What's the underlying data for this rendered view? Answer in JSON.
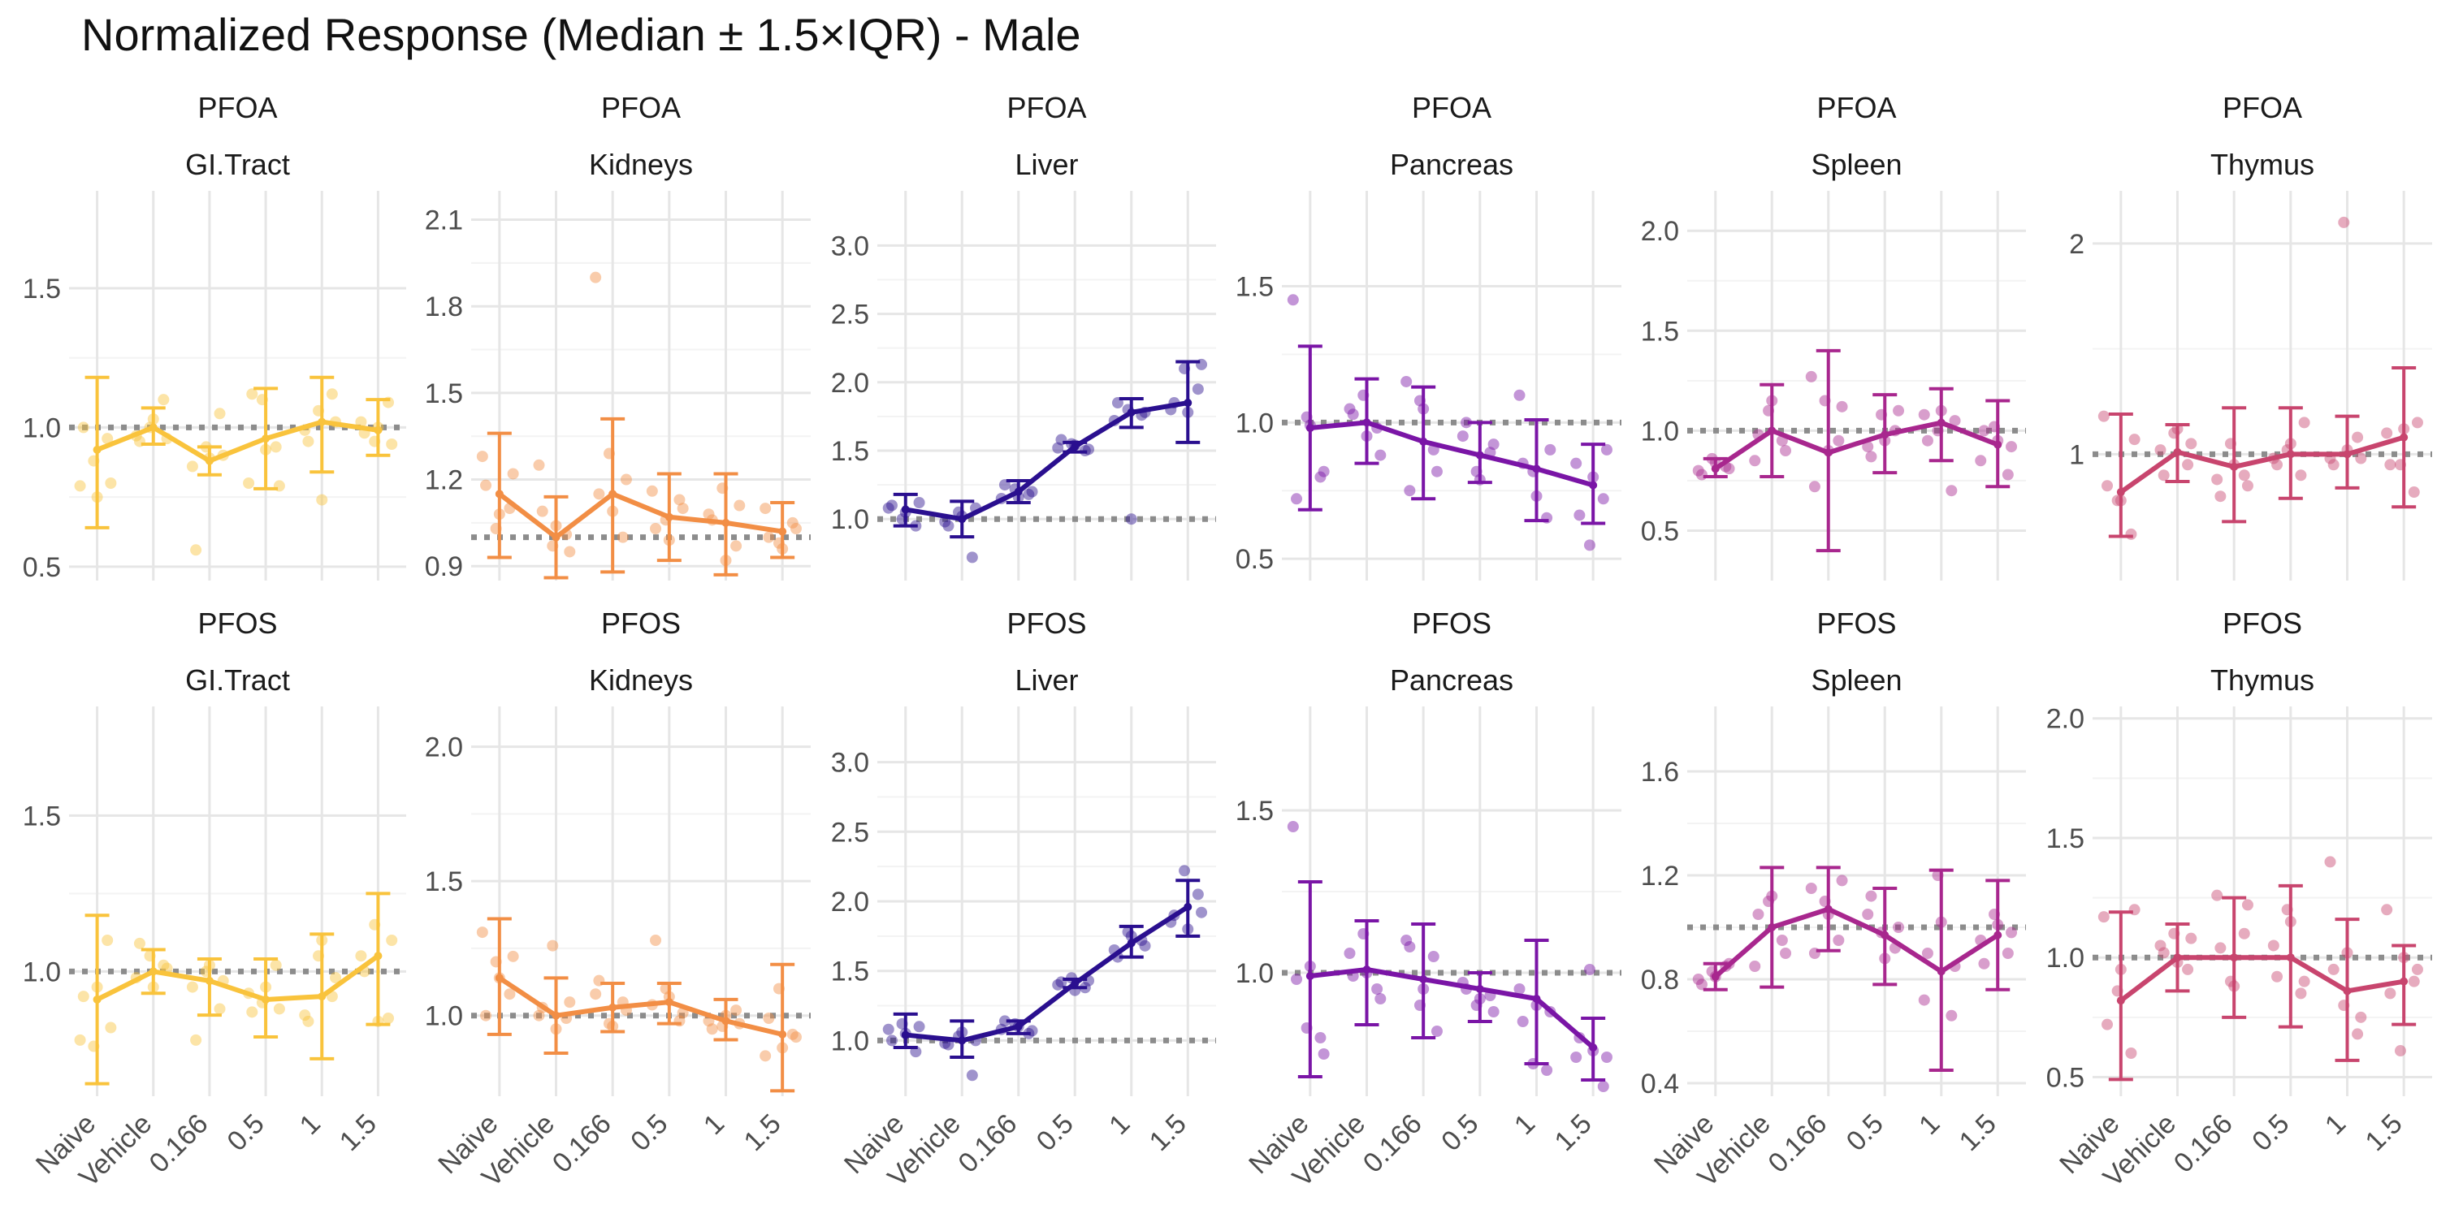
{
  "title": "Normalized Response (Median ± 1.5×IQR) - Male",
  "chart_data": {
    "type": "line",
    "x_categories": [
      "Naive",
      "Vehicle",
      "0.166",
      "0.5",
      "1",
      "1.5"
    ],
    "reference_line_y": 1.0,
    "row_strip_labels": [
      "PFOA",
      "PFOS"
    ],
    "panels": [
      {
        "compound": "PFOA",
        "organ": "GI.Tract",
        "color": "#F9C33C",
        "ylim": [
          0.45,
          1.85
        ],
        "ticks": [
          {
            "v": 0.5,
            "label": "0.5"
          },
          {
            "v": 1.0,
            "label": "1.0"
          },
          {
            "v": 1.5,
            "label": "1.5"
          }
        ],
        "median": [
          0.92,
          1.0,
          0.88,
          0.96,
          1.02,
          0.99
        ],
        "lower": [
          0.64,
          0.94,
          0.83,
          0.78,
          0.84,
          0.9
        ],
        "upper": [
          1.18,
          1.07,
          0.93,
          1.14,
          1.18,
          1.1
        ],
        "points": [
          [
            0.79,
            0.88,
            0.96,
            1.0,
            0.75,
            0.8
          ],
          [
            0.97,
            1.0,
            1.1,
            0.95,
            1.03,
            0.96
          ],
          [
            0.86,
            0.93,
            1.05,
            0.56,
            0.89,
            0.9
          ],
          [
            0.8,
            1.1,
            0.93,
            1.12,
            0.92,
            0.79
          ],
          [
            0.99,
            1.06,
            1.12,
            0.95,
            0.74,
            1.02
          ],
          [
            1.02,
            0.95,
            1.09,
            0.98,
            1.0,
            0.94
          ]
        ]
      },
      {
        "compound": "PFOA",
        "organ": "Kidneys",
        "color": "#F28E45",
        "ylim": [
          0.85,
          2.2
        ],
        "ticks": [
          {
            "v": 0.9,
            "label": "0.9"
          },
          {
            "v": 1.2,
            "label": "1.2"
          },
          {
            "v": 1.5,
            "label": "1.5"
          },
          {
            "v": 1.8,
            "label": "1.8"
          },
          {
            "v": 2.1,
            "label": "2.1"
          }
        ],
        "median": [
          1.15,
          1.0,
          1.15,
          1.07,
          1.05,
          1.02
        ],
        "lower": [
          0.93,
          0.86,
          0.88,
          0.92,
          0.87,
          0.93
        ],
        "upper": [
          1.36,
          1.14,
          1.41,
          1.22,
          1.22,
          1.12
        ],
        "points": [
          [
            1.28,
            1.03,
            1.1,
            1.18,
            1.08,
            1.22
          ],
          [
            1.25,
            0.97,
            1.01,
            1.09,
            1.04,
            0.95
          ],
          [
            1.9,
            1.29,
            1.0,
            1.15,
            1.09,
            1.2
          ],
          [
            1.16,
            1.06,
            1.13,
            1.03,
            0.99,
            1.1
          ],
          [
            1.08,
            1.17,
            0.97,
            1.06,
            0.92,
            1.11
          ],
          [
            1.1,
            0.98,
            1.05,
            1.0,
            0.96,
            1.03
          ]
        ]
      },
      {
        "compound": "PFOA",
        "organ": "Liver",
        "color": "#2A0F8F",
        "ylim": [
          0.55,
          3.4
        ],
        "ticks": [
          {
            "v": 1.0,
            "label": "1.0"
          },
          {
            "v": 1.5,
            "label": "1.5"
          },
          {
            "v": 2.0,
            "label": "2.0"
          },
          {
            "v": 2.5,
            "label": "2.5"
          },
          {
            "v": 3.0,
            "label": "3.0"
          }
        ],
        "median": [
          1.07,
          1.0,
          1.2,
          1.53,
          1.78,
          1.85
        ],
        "lower": [
          0.95,
          0.87,
          1.12,
          1.49,
          1.67,
          1.56
        ],
        "upper": [
          1.18,
          1.13,
          1.28,
          1.56,
          1.88,
          2.15
        ],
        "points": [
          [
            1.08,
            1.0,
            0.95,
            1.1,
            1.05,
            1.12
          ],
          [
            0.98,
            1.05,
            0.72,
            0.95,
            1.02,
            1.08
          ],
          [
            1.15,
            1.22,
            1.18,
            1.25,
            1.16,
            1.2
          ],
          [
            1.52,
            1.55,
            1.5,
            1.58,
            1.54,
            1.51
          ],
          [
            1.72,
            1.8,
            1.76,
            1.85,
            1.0,
            1.78
          ],
          [
            1.8,
            2.1,
            1.95,
            1.85,
            1.78,
            2.13
          ]
        ]
      },
      {
        "compound": "PFOA",
        "organ": "Pancreas",
        "color": "#7A15A6",
        "ylim": [
          0.42,
          1.85
        ],
        "ticks": [
          {
            "v": 0.5,
            "label": "0.5"
          },
          {
            "v": 1.0,
            "label": "1.0"
          },
          {
            "v": 1.5,
            "label": "1.5"
          }
        ],
        "median": [
          0.98,
          1.0,
          0.93,
          0.88,
          0.83,
          0.77
        ],
        "lower": [
          0.68,
          0.85,
          0.72,
          0.78,
          0.64,
          0.63
        ],
        "upper": [
          1.28,
          1.16,
          1.13,
          1.0,
          1.01,
          0.92
        ],
        "points": [
          [
            1.45,
            1.02,
            0.8,
            0.72,
            0.99,
            0.82
          ],
          [
            1.05,
            1.1,
            0.98,
            1.03,
            0.95,
            0.88
          ],
          [
            1.15,
            1.08,
            0.9,
            0.75,
            1.05,
            0.82
          ],
          [
            0.95,
            0.82,
            0.89,
            1.0,
            0.79,
            0.92
          ],
          [
            1.1,
            0.82,
            0.65,
            0.85,
            0.73,
            0.9
          ],
          [
            0.85,
            0.55,
            0.72,
            0.66,
            0.8,
            0.9
          ]
        ]
      },
      {
        "compound": "PFOA",
        "organ": "Spleen",
        "color": "#A8278E",
        "ylim": [
          0.25,
          2.2
        ],
        "ticks": [
          {
            "v": 0.5,
            "label": "0.5"
          },
          {
            "v": 1.0,
            "label": "1.0"
          },
          {
            "v": 1.5,
            "label": "1.5"
          },
          {
            "v": 2.0,
            "label": "2.0"
          }
        ],
        "median": [
          0.81,
          1.0,
          0.89,
          0.98,
          1.04,
          0.93
        ],
        "lower": [
          0.77,
          0.77,
          0.4,
          0.79,
          0.85,
          0.72
        ],
        "upper": [
          0.86,
          1.23,
          1.4,
          1.18,
          1.21,
          1.15
        ],
        "points": [
          [
            0.8,
            0.86,
            0.82,
            0.78,
            0.84,
            0.81
          ],
          [
            0.85,
            1.1,
            0.95,
            0.98,
            1.15,
            0.9
          ],
          [
            1.27,
            1.15,
            0.95,
            0.72,
            0.9,
            1.12
          ],
          [
            0.92,
            1.08,
            1.0,
            0.87,
            0.95,
            1.1
          ],
          [
            1.08,
            1.0,
            0.7,
            0.95,
            1.1,
            1.05
          ],
          [
            0.85,
            1.02,
            0.78,
            1.0,
            0.95,
            0.92
          ]
        ]
      },
      {
        "compound": "PFOA",
        "organ": "Thymus",
        "color": "#C8456E",
        "ylim": [
          0.4,
          2.25
        ],
        "ticks": [
          {
            "v": 1.0,
            "label": "1"
          },
          {
            "v": 2.0,
            "label": "2"
          }
        ],
        "median": [
          0.82,
          1.01,
          0.94,
          1.0,
          1.0,
          1.08
        ],
        "lower": [
          0.61,
          0.87,
          0.68,
          0.79,
          0.84,
          0.75
        ],
        "upper": [
          1.19,
          1.14,
          1.22,
          1.22,
          1.18,
          1.41
        ],
        "points": [
          [
            1.18,
            0.78,
            0.62,
            0.85,
            0.78,
            1.07
          ],
          [
            1.02,
            1.1,
            0.95,
            0.9,
            1.12,
            1.05
          ],
          [
            0.88,
            1.05,
            0.9,
            0.8,
            0.95,
            0.85
          ],
          [
            0.98,
            1.02,
            0.9,
            0.95,
            1.05,
            1.15
          ],
          [
            0.98,
            2.1,
            1.08,
            0.95,
            1.02,
            0.98
          ],
          [
            1.1,
            0.95,
            0.82,
            0.95,
            1.12,
            1.15
          ]
        ]
      },
      {
        "compound": "PFOS",
        "organ": "GI.Tract",
        "color": "#F9C33C",
        "ylim": [
          0.6,
          1.85
        ],
        "ticks": [
          {
            "v": 1.0,
            "label": "1.0"
          },
          {
            "v": 1.5,
            "label": "1.5"
          }
        ],
        "median": [
          0.91,
          1.0,
          0.97,
          0.91,
          0.92,
          1.05
        ],
        "lower": [
          0.64,
          0.93,
          0.86,
          0.79,
          0.72,
          0.83
        ],
        "upper": [
          1.18,
          1.07,
          1.04,
          1.04,
          1.12,
          1.25
        ],
        "points": [
          [
            0.78,
            0.76,
            1.1,
            0.92,
            0.95,
            0.82
          ],
          [
            0.98,
            1.05,
            1.02,
            1.09,
            0.95,
            1.01
          ],
          [
            0.95,
            1.0,
            0.88,
            0.78,
            1.02,
            0.97
          ],
          [
            0.93,
            0.9,
            1.02,
            0.87,
            0.95,
            0.88
          ],
          [
            0.86,
            1.05,
            0.92,
            0.84,
            1.1,
            0.98
          ],
          [
            1.05,
            1.15,
            0.85,
            1.0,
            0.84,
            1.1
          ]
        ]
      },
      {
        "compound": "PFOS",
        "organ": "Kidneys",
        "color": "#F28E45",
        "ylim": [
          0.7,
          2.15
        ],
        "ticks": [
          {
            "v": 1.0,
            "label": "1.0"
          },
          {
            "v": 1.5,
            "label": "1.5"
          },
          {
            "v": 2.0,
            "label": "2.0"
          }
        ],
        "median": [
          1.14,
          1.0,
          1.03,
          1.05,
          0.98,
          0.93
        ],
        "lower": [
          0.93,
          0.86,
          0.94,
          0.97,
          0.91,
          0.72
        ],
        "upper": [
          1.36,
          1.14,
          1.12,
          1.12,
          1.06,
          1.19
        ],
        "points": [
          [
            1.31,
            1.2,
            1.08,
            1.0,
            1.14,
            1.22
          ],
          [
            1.0,
            1.26,
            0.99,
            1.03,
            0.95,
            1.05
          ],
          [
            1.08,
            0.97,
            1.05,
            1.13,
            0.96,
            1.02
          ],
          [
            1.04,
            1.1,
            0.98,
            1.28,
            1.07,
            1.01
          ],
          [
            0.98,
            0.96,
            1.02,
            0.95,
            1.0,
            0.97
          ],
          [
            0.85,
            1.1,
            0.93,
            0.99,
            0.88,
            0.92
          ]
        ]
      },
      {
        "compound": "PFOS",
        "organ": "Liver",
        "color": "#2A0F8F",
        "ylim": [
          0.6,
          3.4
        ],
        "ticks": [
          {
            "v": 1.0,
            "label": "1.0"
          },
          {
            "v": 1.5,
            "label": "1.5"
          },
          {
            "v": 2.0,
            "label": "2.0"
          },
          {
            "v": 2.5,
            "label": "2.5"
          },
          {
            "v": 3.0,
            "label": "3.0"
          }
        ],
        "median": [
          1.04,
          1.0,
          1.1,
          1.41,
          1.7,
          1.96
        ],
        "lower": [
          0.95,
          0.88,
          1.05,
          1.38,
          1.6,
          1.75
        ],
        "upper": [
          1.19,
          1.14,
          1.14,
          1.44,
          1.82,
          2.15
        ],
        "points": [
          [
            1.08,
            1.12,
            0.92,
            1.0,
            1.05,
            1.1
          ],
          [
            0.98,
            1.03,
            0.75,
            0.97,
            1.06,
            1.0
          ],
          [
            1.08,
            1.12,
            1.05,
            1.14,
            1.1,
            1.07
          ],
          [
            1.4,
            1.45,
            1.38,
            1.42,
            1.36,
            1.43
          ],
          [
            1.65,
            1.78,
            1.72,
            1.6,
            1.75,
            1.68
          ],
          [
            1.85,
            2.22,
            2.05,
            1.9,
            1.8,
            1.92
          ]
        ]
      },
      {
        "compound": "PFOS",
        "organ": "Pancreas",
        "color": "#7A15A6",
        "ylim": [
          0.62,
          1.82
        ],
        "ticks": [
          {
            "v": 1.0,
            "label": "1.0"
          },
          {
            "v": 1.5,
            "label": "1.5"
          }
        ],
        "median": [
          0.99,
          1.01,
          0.98,
          0.95,
          0.92,
          0.77
        ],
        "lower": [
          0.68,
          0.84,
          0.8,
          0.85,
          0.72,
          0.67
        ],
        "upper": [
          1.28,
          1.16,
          1.15,
          1.0,
          1.1,
          0.86
        ],
        "points": [
          [
            1.45,
            0.83,
            0.8,
            0.98,
            1.02,
            0.75
          ],
          [
            1.06,
            1.12,
            0.95,
            0.99,
            1.0,
            0.92
          ],
          [
            1.1,
            0.9,
            1.05,
            1.08,
            0.95,
            0.82
          ],
          [
            0.97,
            0.9,
            0.93,
            0.95,
            0.92,
            0.88
          ],
          [
            0.95,
            0.72,
            0.7,
            0.85,
            0.9,
            0.88
          ],
          [
            0.74,
            1.01,
            0.65,
            0.8,
            0.76,
            0.74
          ]
        ]
      },
      {
        "compound": "PFOS",
        "organ": "Spleen",
        "color": "#A8278E",
        "ylim": [
          0.35,
          1.85
        ],
        "ticks": [
          {
            "v": 0.4,
            "label": "0.4"
          },
          {
            "v": 0.8,
            "label": "0.8"
          },
          {
            "v": 1.2,
            "label": "1.2"
          },
          {
            "v": 1.6,
            "label": "1.6"
          }
        ],
        "median": [
          0.81,
          1.0,
          1.07,
          0.97,
          0.83,
          0.97
        ],
        "lower": [
          0.76,
          0.77,
          0.91,
          0.78,
          0.45,
          0.76
        ],
        "upper": [
          0.86,
          1.23,
          1.23,
          1.15,
          1.22,
          1.18
        ],
        "points": [
          [
            0.8,
            0.83,
            0.85,
            0.78,
            0.81,
            0.86
          ],
          [
            0.85,
            1.1,
            0.95,
            1.05,
            1.12,
            0.9
          ],
          [
            1.15,
            1.1,
            0.95,
            0.9,
            1.05,
            1.18
          ],
          [
            1.05,
            0.98,
            0.92,
            1.12,
            0.88,
            1.0
          ],
          [
            0.72,
            1.2,
            0.66,
            0.9,
            1.02,
            0.85
          ],
          [
            0.95,
            1.05,
            0.9,
            0.86,
            1.01,
            0.98
          ]
        ]
      },
      {
        "compound": "PFOS",
        "organ": "Thymus",
        "color": "#C8456E",
        "ylim": [
          0.42,
          2.05
        ],
        "ticks": [
          {
            "v": 0.5,
            "label": "0.5"
          },
          {
            "v": 1.0,
            "label": "1.0"
          },
          {
            "v": 1.5,
            "label": "1.5"
          },
          {
            "v": 2.0,
            "label": "2.0"
          }
        ],
        "median": [
          0.82,
          1.0,
          1.0,
          1.0,
          0.86,
          0.9
        ],
        "lower": [
          0.49,
          0.86,
          0.75,
          0.71,
          0.57,
          0.72
        ],
        "upper": [
          1.19,
          1.14,
          1.25,
          1.3,
          1.16,
          1.05
        ],
        "points": [
          [
            1.17,
            0.86,
            0.6,
            0.72,
            0.95,
            1.2
          ],
          [
            1.05,
            1.1,
            0.95,
            1.02,
            0.98,
            1.08
          ],
          [
            1.26,
            0.9,
            1.1,
            1.04,
            0.88,
            1.22
          ],
          [
            1.05,
            1.2,
            0.85,
            0.92,
            1.15,
            0.9
          ],
          [
            1.4,
            0.8,
            0.68,
            0.95,
            1.02,
            0.75
          ],
          [
            1.2,
            0.61,
            0.9,
            0.85,
            1.0,
            0.95
          ]
        ]
      }
    ]
  }
}
